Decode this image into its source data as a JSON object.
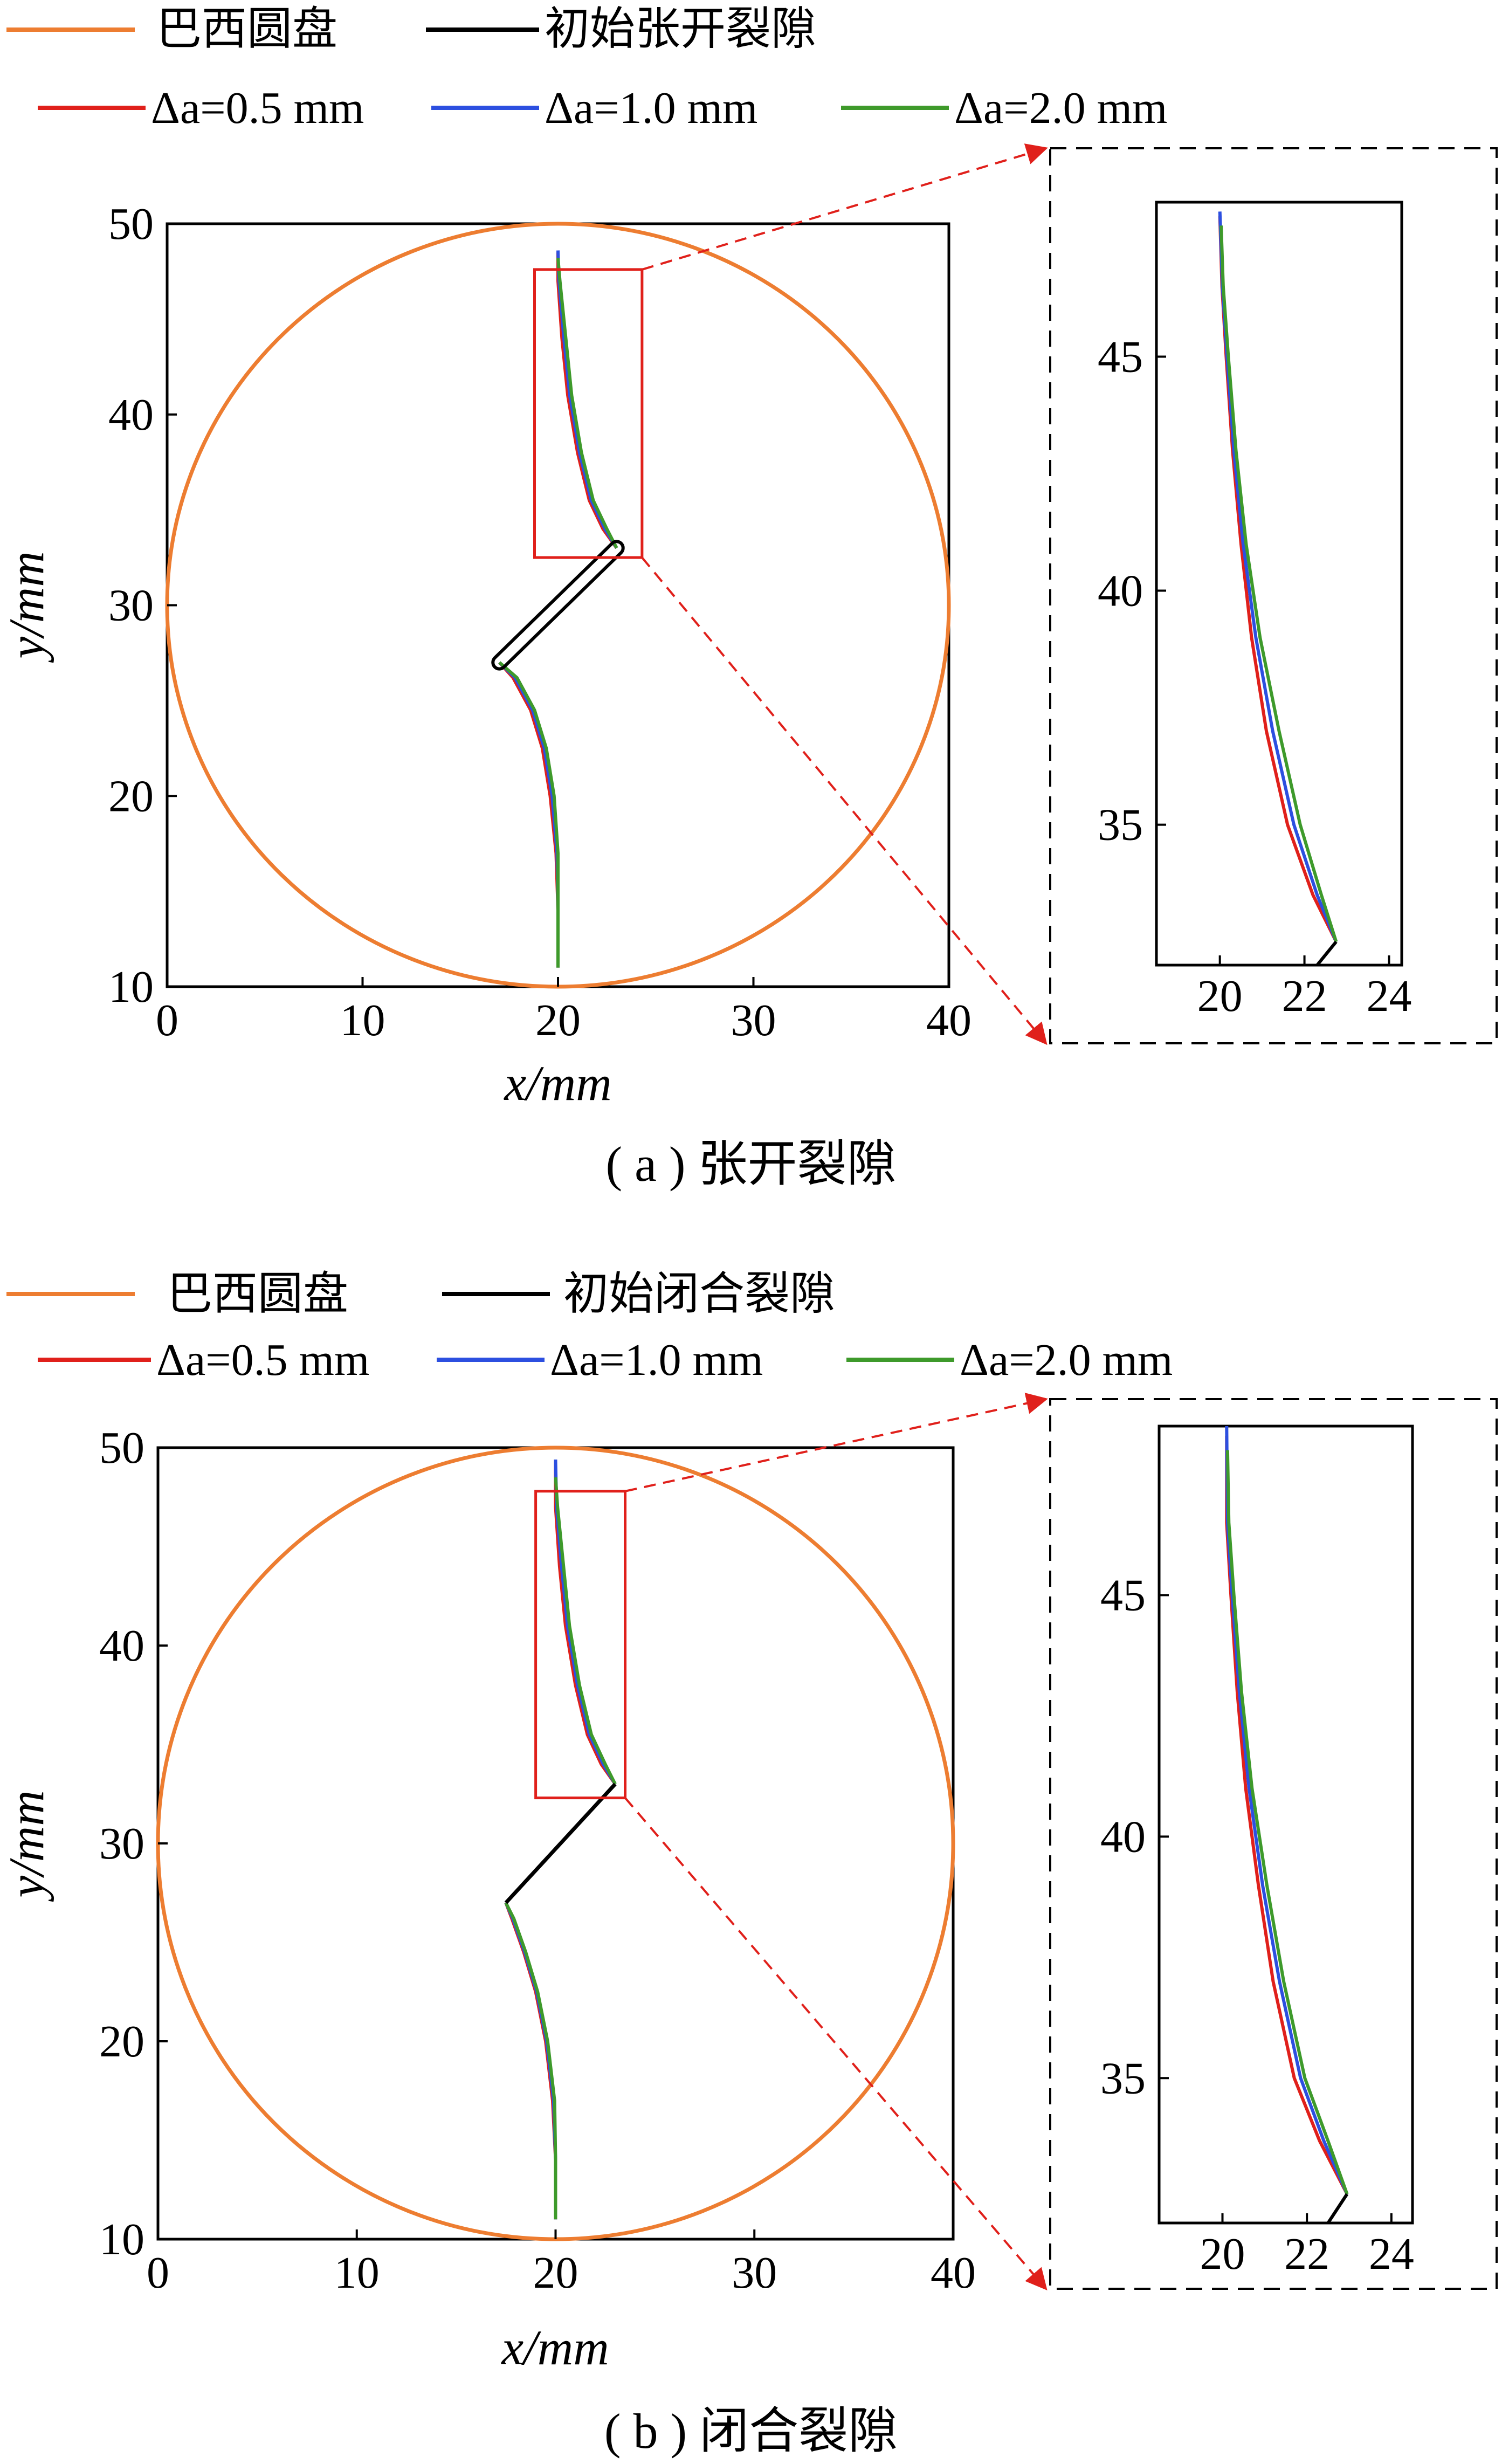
{
  "colors": {
    "disc": "#ED7D31",
    "initial_crack": "#000000",
    "da05": "#E0201B",
    "da10": "#2C4FE0",
    "da20": "#3E9A2B",
    "zoom_box": "#E0201B",
    "zoom_arrow": "#E0201B"
  },
  "chart_data": [
    {
      "id": "a",
      "type": "line",
      "caption": "( a ) 张开裂隙",
      "legend": {
        "disc": "巴西圆盘",
        "initial": "初始张开裂隙",
        "da05": "Δa=0.5 mm",
        "da10": "Δa=1.0 mm",
        "da20": "Δa=2.0 mm"
      },
      "main": {
        "xlabel": "x/mm",
        "ylabel": "y/mm",
        "xlim": [
          0,
          40
        ],
        "ylim": [
          10,
          50
        ],
        "xticks": [
          "0",
          "10",
          "20",
          "30",
          "40"
        ],
        "yticks": [
          "10",
          "20",
          "30",
          "40",
          "50"
        ],
        "disc": {
          "cx": 20,
          "cy": 30,
          "r": 20
        },
        "initial_crack": [
          [
            17.0,
            27.0
          ],
          [
            23.0,
            33.0
          ]
        ],
        "zoom_box": {
          "x": [
            18.8,
            24.3
          ],
          "y": [
            32.5,
            47.6
          ]
        },
        "series": [
          {
            "name": "Δa=0.5 mm",
            "key": "da05",
            "points": [
              [
                20.0,
                11.0
              ],
              [
                20.0,
                14.0
              ],
              [
                19.9,
                17.0
              ],
              [
                19.6,
                20.0
              ],
              [
                19.2,
                22.5
              ],
              [
                18.6,
                24.5
              ],
              [
                17.7,
                26.2
              ],
              [
                17.0,
                27.0
              ]
            ],
            "points_top": [
              [
                23.0,
                33.0
              ],
              [
                22.3,
                34.0
              ],
              [
                21.6,
                35.5
              ],
              [
                21.0,
                38.0
              ],
              [
                20.5,
                41.0
              ],
              [
                20.2,
                44.0
              ],
              [
                20.0,
                47.0
              ],
              [
                20.0,
                48.5
              ]
            ]
          },
          {
            "name": "Δa=1.0 mm",
            "key": "da10",
            "points": [
              [
                20.0,
                11.0
              ],
              [
                20.0,
                14.0
              ],
              [
                19.95,
                17.0
              ],
              [
                19.7,
                20.0
              ],
              [
                19.3,
                22.5
              ],
              [
                18.7,
                24.5
              ],
              [
                17.8,
                26.2
              ],
              [
                17.0,
                27.0
              ]
            ],
            "points_top": [
              [
                23.0,
                33.0
              ],
              [
                22.4,
                34.0
              ],
              [
                21.7,
                35.5
              ],
              [
                21.1,
                38.0
              ],
              [
                20.6,
                41.0
              ],
              [
                20.3,
                44.0
              ],
              [
                20.05,
                47.0
              ],
              [
                20.0,
                48.6
              ]
            ]
          },
          {
            "name": "Δa=2.0 mm",
            "key": "da20",
            "points": [
              [
                20.0,
                11.0
              ],
              [
                20.0,
                14.0
              ],
              [
                20.0,
                17.0
              ],
              [
                19.8,
                20.0
              ],
              [
                19.4,
                22.5
              ],
              [
                18.8,
                24.5
              ],
              [
                17.9,
                26.2
              ],
              [
                17.0,
                27.0
              ]
            ],
            "points_top": [
              [
                23.0,
                33.0
              ],
              [
                22.5,
                34.0
              ],
              [
                21.8,
                35.5
              ],
              [
                21.2,
                38.0
              ],
              [
                20.7,
                41.0
              ],
              [
                20.4,
                44.0
              ],
              [
                20.1,
                47.0
              ],
              [
                20.0,
                48.2
              ]
            ]
          }
        ]
      },
      "inset": {
        "xlim": [
          18.5,
          24.3
        ],
        "ylim": [
          32.0,
          48.3
        ],
        "xticks": [
          "20",
          "22",
          "24"
        ],
        "yticks": [
          "35",
          "40",
          "45"
        ],
        "initial_tail": [
          [
            22.3,
            32.0
          ],
          [
            22.75,
            32.5
          ]
        ],
        "series": [
          {
            "name": "Δa=0.5 mm",
            "key": "da05",
            "points": [
              [
                22.75,
                32.5
              ],
              [
                22.2,
                33.5
              ],
              [
                21.6,
                35.0
              ],
              [
                21.1,
                37.0
              ],
              [
                20.75,
                39.0
              ],
              [
                20.5,
                41.0
              ],
              [
                20.3,
                43.0
              ],
              [
                20.15,
                45.0
              ],
              [
                20.05,
                46.5
              ],
              [
                20.0,
                48.0
              ]
            ]
          },
          {
            "name": "Δa=1.0 mm",
            "key": "da10",
            "points": [
              [
                22.75,
                32.5
              ],
              [
                22.3,
                33.5
              ],
              [
                21.75,
                35.0
              ],
              [
                21.25,
                37.0
              ],
              [
                20.85,
                39.0
              ],
              [
                20.55,
                41.0
              ],
              [
                20.33,
                43.0
              ],
              [
                20.17,
                45.0
              ],
              [
                20.06,
                46.5
              ],
              [
                20.0,
                48.1
              ]
            ]
          },
          {
            "name": "Δa=2.0 mm",
            "key": "da20",
            "points": [
              [
                22.75,
                32.5
              ],
              [
                22.4,
                33.5
              ],
              [
                21.9,
                35.0
              ],
              [
                21.4,
                37.0
              ],
              [
                20.95,
                39.0
              ],
              [
                20.62,
                41.0
              ],
              [
                20.38,
                43.0
              ],
              [
                20.2,
                45.0
              ],
              [
                20.08,
                46.5
              ],
              [
                20.03,
                47.8
              ]
            ]
          }
        ]
      }
    },
    {
      "id": "b",
      "type": "line",
      "caption": "( b ) 闭合裂隙",
      "legend": {
        "disc": "巴西圆盘",
        "initial": "初始闭合裂隙",
        "da05": "Δa=0.5 mm",
        "da10": "Δa=1.0 mm",
        "da20": "Δa=2.0 mm"
      },
      "main": {
        "xlabel": "x/mm",
        "ylabel": "y/mm",
        "xlim": [
          0,
          40
        ],
        "ylim": [
          10,
          50
        ],
        "xticks": [
          "0",
          "10",
          "20",
          "30",
          "40"
        ],
        "yticks": [
          "10",
          "20",
          "30",
          "40",
          "50"
        ],
        "disc": {
          "cx": 20,
          "cy": 30,
          "r": 20
        },
        "initial_crack": [
          [
            17.5,
            27.0
          ],
          [
            23.0,
            33.0
          ]
        ],
        "zoom_box": {
          "x": [
            19.0,
            23.5
          ],
          "y": [
            32.3,
            47.8
          ]
        },
        "series": [
          {
            "name": "Δa=0.5 mm",
            "key": "da05",
            "points": [
              [
                20.0,
                11.0
              ],
              [
                20.0,
                14.0
              ],
              [
                19.85,
                17.0
              ],
              [
                19.5,
                20.0
              ],
              [
                19.0,
                22.5
              ],
              [
                18.4,
                24.5
              ],
              [
                17.8,
                26.2
              ],
              [
                17.5,
                27.0
              ]
            ],
            "points_top": [
              [
                23.0,
                33.0
              ],
              [
                22.3,
                34.0
              ],
              [
                21.6,
                35.5
              ],
              [
                21.0,
                38.0
              ],
              [
                20.5,
                41.0
              ],
              [
                20.2,
                44.0
              ],
              [
                20.0,
                47.0
              ],
              [
                20.0,
                49.3
              ]
            ]
          },
          {
            "name": "Δa=1.0 mm",
            "key": "da10",
            "points": [
              [
                20.0,
                11.0
              ],
              [
                20.0,
                14.0
              ],
              [
                19.9,
                17.0
              ],
              [
                19.55,
                20.0
              ],
              [
                19.05,
                22.5
              ],
              [
                18.45,
                24.5
              ],
              [
                17.85,
                26.2
              ],
              [
                17.5,
                27.0
              ]
            ],
            "points_top": [
              [
                23.0,
                33.0
              ],
              [
                22.4,
                34.0
              ],
              [
                21.7,
                35.5
              ],
              [
                21.1,
                38.0
              ],
              [
                20.6,
                41.0
              ],
              [
                20.3,
                44.0
              ],
              [
                20.05,
                47.0
              ],
              [
                20.0,
                49.4
              ]
            ]
          },
          {
            "name": "Δa=2.0 mm",
            "key": "da20",
            "points": [
              [
                20.0,
                11.0
              ],
              [
                20.0,
                14.0
              ],
              [
                19.95,
                17.0
              ],
              [
                19.6,
                20.0
              ],
              [
                19.1,
                22.5
              ],
              [
                18.5,
                24.5
              ],
              [
                17.9,
                26.2
              ],
              [
                17.5,
                27.0
              ]
            ],
            "points_top": [
              [
                23.0,
                33.0
              ],
              [
                22.5,
                34.0
              ],
              [
                21.8,
                35.5
              ],
              [
                21.2,
                38.0
              ],
              [
                20.7,
                41.0
              ],
              [
                20.4,
                44.0
              ],
              [
                20.1,
                47.0
              ],
              [
                20.0,
                48.5
              ]
            ]
          }
        ]
      },
      "inset": {
        "xlim": [
          18.5,
          24.5
        ],
        "ylim": [
          32.0,
          48.5
        ],
        "xticks": [
          "20",
          "22",
          "24"
        ],
        "yticks": [
          "35",
          "40",
          "45"
        ],
        "initial_tail": [
          [
            22.5,
            32.0
          ],
          [
            22.95,
            32.6
          ]
        ],
        "series": [
          {
            "name": "Δa=0.5 mm",
            "key": "da05",
            "points": [
              [
                22.95,
                32.6
              ],
              [
                22.3,
                33.7
              ],
              [
                21.7,
                35.0
              ],
              [
                21.2,
                37.0
              ],
              [
                20.85,
                39.0
              ],
              [
                20.55,
                41.0
              ],
              [
                20.35,
                43.0
              ],
              [
                20.2,
                45.0
              ],
              [
                20.1,
                46.5
              ],
              [
                20.1,
                48.3
              ]
            ]
          },
          {
            "name": "Δa=1.0 mm",
            "key": "da10",
            "points": [
              [
                22.95,
                32.6
              ],
              [
                22.4,
                33.7
              ],
              [
                21.85,
                35.0
              ],
              [
                21.35,
                37.0
              ],
              [
                20.95,
                39.0
              ],
              [
                20.63,
                41.0
              ],
              [
                20.4,
                43.0
              ],
              [
                20.23,
                45.0
              ],
              [
                20.12,
                46.5
              ],
              [
                20.1,
                48.5
              ]
            ]
          },
          {
            "name": "Δa=2.0 mm",
            "key": "da20",
            "points": [
              [
                22.95,
                32.6
              ],
              [
                22.5,
                33.7
              ],
              [
                21.95,
                35.0
              ],
              [
                21.45,
                37.0
              ],
              [
                21.05,
                39.0
              ],
              [
                20.7,
                41.0
              ],
              [
                20.45,
                43.0
              ],
              [
                20.27,
                45.0
              ],
              [
                20.15,
                46.5
              ],
              [
                20.12,
                48.0
              ]
            ]
          }
        ]
      }
    }
  ]
}
